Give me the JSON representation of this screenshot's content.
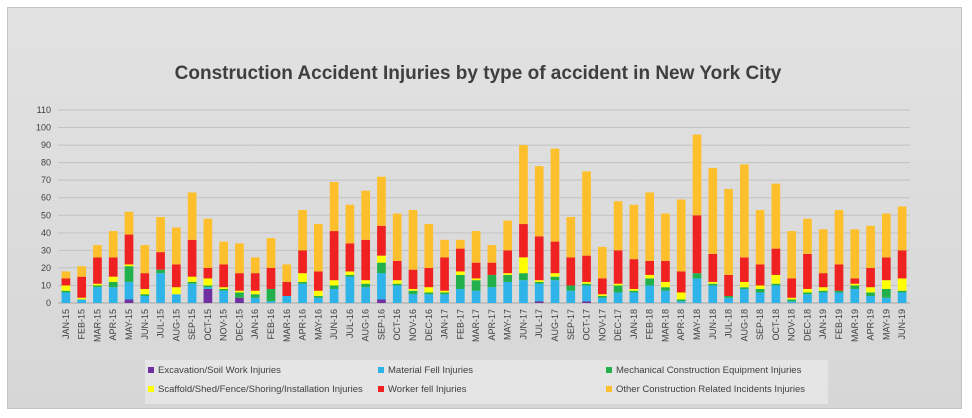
{
  "chart_data": {
    "type": "bar",
    "stacked": true,
    "title": "Construction Accident Injuries by type of accident in New York City",
    "xlabel": "",
    "ylabel": "",
    "ylim": [
      0,
      110
    ],
    "yticks": [
      0,
      10,
      20,
      30,
      40,
      50,
      60,
      70,
      80,
      90,
      100,
      110
    ],
    "grid": true,
    "legend_position": "bottom",
    "categories": [
      "JAN-15",
      "FEB-15",
      "MAR-15",
      "APR-15",
      "MAY-15",
      "JUN-15",
      "JUL-15",
      "AUG-15",
      "SEP-15",
      "OCT-15",
      "NOV-15",
      "DEC-15",
      "JAN-16",
      "FEB-16",
      "MAR-16",
      "APR-16",
      "MAY-16",
      "JUN-16",
      "JUL-16",
      "AUG-16",
      "SEP-16",
      "OCT-16",
      "NOV-16",
      "DEC-16",
      "JAN-17",
      "FEB-17",
      "MAR-17",
      "APR-17",
      "MAY-17",
      "JUN-17",
      "JUL-17",
      "AUG-17",
      "SEP-17",
      "OCT-17",
      "NOV-17",
      "DEC-17",
      "JAN-18",
      "FEB-18",
      "MAR-18",
      "APR-18",
      "MAY-18",
      "JUN-18",
      "JUL-18",
      "AUG-18",
      "SEP-18",
      "OCT-18",
      "NOV-18",
      "DEC-18",
      "JAN-19",
      "FEB-19",
      "MAR-19",
      "APR-19",
      "MAY-19",
      "JUN-19"
    ],
    "series": [
      {
        "name": "Excavation/Soil Work Injuries",
        "color": "#7030a0",
        "values": [
          0,
          0,
          0,
          0,
          2,
          0,
          0,
          0,
          0,
          8,
          0,
          3,
          0,
          0,
          0,
          0,
          0,
          0,
          0,
          0,
          2,
          0,
          0,
          0,
          0,
          0,
          0,
          0,
          0,
          0,
          1,
          0,
          0,
          1,
          0,
          0,
          0,
          0,
          0,
          0,
          0,
          0,
          0,
          0,
          0,
          0,
          0,
          0,
          0,
          0,
          0,
          0,
          0,
          0
        ]
      },
      {
        "name": "Material Fell Injuries",
        "color": "#2eb4e8",
        "values": [
          6,
          2,
          9,
          9,
          10,
          4,
          17,
          5,
          11,
          1,
          7,
          0,
          3,
          1,
          4,
          11,
          3,
          8,
          15,
          9,
          15,
          10,
          5,
          5,
          5,
          8,
          7,
          9,
          12,
          13,
          10,
          13,
          7,
          9,
          3,
          6,
          6,
          10,
          7,
          1,
          14,
          10,
          3,
          8,
          6,
          10,
          1,
          5,
          6,
          6,
          8,
          4,
          3,
          6
        ]
      },
      {
        "name": "Mechanical Construction Equipment Injuries",
        "color": "#21b04c",
        "values": [
          1,
          0,
          1,
          3,
          9,
          1,
          2,
          0,
          1,
          1,
          1,
          3,
          2,
          7,
          0,
          1,
          1,
          2,
          1,
          2,
          6,
          1,
          2,
          1,
          1,
          8,
          6,
          7,
          4,
          4,
          1,
          2,
          3,
          1,
          1,
          4,
          1,
          4,
          2,
          1,
          3,
          1,
          1,
          1,
          2,
          1,
          1,
          1,
          1,
          1,
          2,
          2,
          5,
          1
        ]
      },
      {
        "name": "Scaffold/Shed/Fence/Shoring/Installation Injuries",
        "color": "#ffff00",
        "values": [
          3,
          1,
          1,
          3,
          1,
          3,
          0,
          4,
          3,
          4,
          1,
          1,
          2,
          0,
          0,
          5,
          3,
          3,
          2,
          2,
          4,
          2,
          1,
          3,
          1,
          2,
          1,
          0,
          1,
          9,
          1,
          2,
          0,
          1,
          1,
          1,
          1,
          2,
          3,
          4,
          0,
          1,
          0,
          3,
          2,
          5,
          1,
          2,
          2,
          0,
          1,
          3,
          5,
          7
        ]
      },
      {
        "name": "Worker fell Injuries",
        "color": "#ef2121",
        "values": [
          4,
          12,
          15,
          11,
          17,
          9,
          10,
          13,
          21,
          6,
          13,
          10,
          10,
          12,
          8,
          13,
          11,
          28,
          16,
          23,
          17,
          11,
          11,
          11,
          19,
          13,
          9,
          7,
          13,
          19,
          25,
          18,
          16,
          15,
          9,
          19,
          17,
          8,
          12,
          12,
          33,
          16,
          12,
          14,
          12,
          15,
          11,
          20,
          8,
          15,
          3,
          11,
          13,
          16
        ]
      },
      {
        "name": "Other Construction Related Incidents Injuries",
        "color": "#fdc02c",
        "values": [
          4,
          6,
          7,
          15,
          13,
          16,
          20,
          21,
          27,
          28,
          13,
          17,
          9,
          17,
          10,
          23,
          27,
          28,
          22,
          28,
          28,
          27,
          34,
          25,
          10,
          5,
          18,
          10,
          17,
          45,
          40,
          53,
          23,
          48,
          18,
          28,
          31,
          39,
          27,
          41,
          46,
          49,
          49,
          53,
          31,
          37,
          27,
          20,
          25,
          31,
          28,
          24,
          25,
          25
        ]
      }
    ]
  }
}
